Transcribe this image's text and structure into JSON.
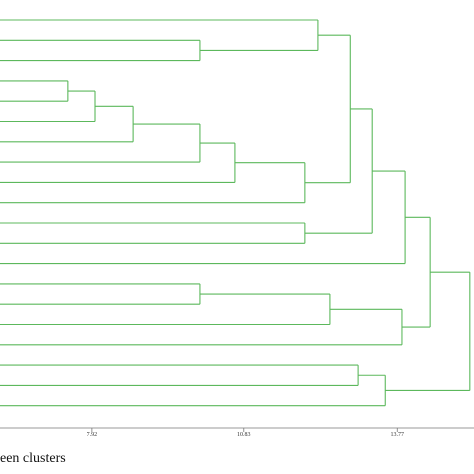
{
  "chart_data": {
    "type": "dendrogram",
    "x_label": "een clusters",
    "color": "#5cb85c",
    "xlim": [
      6.16,
      15.24
    ],
    "xticks": [
      7.92,
      10.83,
      13.77
    ],
    "leaf_count": 20,
    "merges": [
      {
        "children": [
          1,
          2
        ],
        "height": 9.99
      },
      {
        "children": [
          0,
          20
        ],
        "height": 12.25
      },
      {
        "children": [
          3,
          4
        ],
        "height": 7.46
      },
      {
        "children": [
          22,
          5
        ],
        "height": 7.98
      },
      {
        "children": [
          23,
          6
        ],
        "height": 8.71
      },
      {
        "children": [
          24,
          7
        ],
        "height": 9.99
      },
      {
        "children": [
          25,
          8
        ],
        "height": 10.66
      },
      {
        "children": [
          26,
          9
        ],
        "height": 12.0
      },
      {
        "children": [
          10,
          11
        ],
        "height": 12.0
      },
      {
        "children": [
          21,
          27
        ],
        "height": 12.87
      },
      {
        "children": [
          29,
          28
        ],
        "height": 13.29
      },
      {
        "children": [
          30,
          12
        ],
        "height": 13.92
      },
      {
        "children": [
          13,
          14
        ],
        "height": 9.99
      },
      {
        "children": [
          32,
          15
        ],
        "height": 12.48
      },
      {
        "children": [
          33,
          16
        ],
        "height": 13.86
      },
      {
        "children": [
          31,
          34
        ],
        "height": 14.4
      },
      {
        "children": [
          17,
          18
        ],
        "height": 13.02
      },
      {
        "children": [
          36,
          19
        ],
        "height": 13.54
      },
      {
        "children": [
          35,
          37
        ],
        "height": 15.16
      }
    ]
  }
}
